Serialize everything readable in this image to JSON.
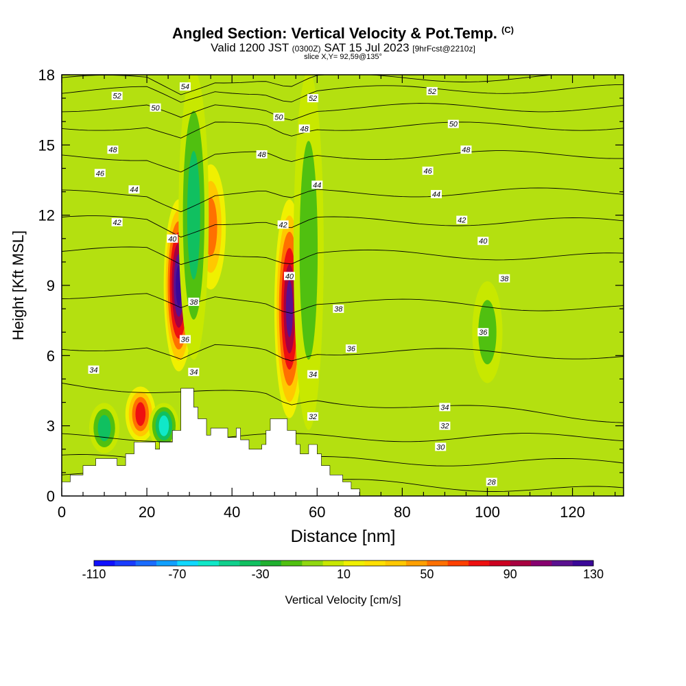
{
  "header": {
    "title": "Angled Section: Vertical Velocity & Pot.Temp.",
    "title_mark": "(C)",
    "valid_prefix": "Valid 1200 JST",
    "valid_utc": "(0300Z)",
    "valid_date": "SAT 15 Jul 2023",
    "forecast": "[9hrFcst@2210z]",
    "slice": "slice X,Y= 92,59@135°"
  },
  "colorbar": {
    "label": "Vertical Velocity [cm/s]",
    "tick_labels": [
      "-110",
      "-70",
      "-30",
      "10",
      "50",
      "90",
      "130"
    ],
    "colors": [
      "#1010ff",
      "#1a3cff",
      "#1a6cff",
      "#10a0ff",
      "#10d8ff",
      "#10e8c8",
      "#10d08c",
      "#10c060",
      "#20b030",
      "#50c010",
      "#90d810",
      "#c8e800",
      "#f0f000",
      "#ffe000",
      "#ffc800",
      "#ffa000",
      "#ff7000",
      "#ff4000",
      "#ee1010",
      "#cc0020",
      "#a80040",
      "#880070",
      "#5a1090",
      "#3a0898"
    ]
  },
  "chart_data": {
    "type": "heatmap",
    "title": "Angled Section: Vertical Velocity & Pot.Temp.",
    "xlabel": "Distance [nm]",
    "ylabel": "Height [Kft MSL]",
    "xlim": [
      0,
      132
    ],
    "ylim": [
      0,
      18
    ],
    "x_ticks": [
      0,
      20,
      40,
      60,
      80,
      100,
      120
    ],
    "y_ticks": [
      0,
      3,
      6,
      9,
      12,
      15,
      18
    ],
    "fill_variable": "Vertical Velocity [cm/s]",
    "fill_range": [
      -110,
      130
    ],
    "contour_variable": "Potential Temperature",
    "updrafts": [
      {
        "x": 27.5,
        "z_range": [
          5.5,
          12.5
        ],
        "max": 130
      },
      {
        "x": 53.5,
        "z_range": [
          3.5,
          12.5
        ],
        "max": 110
      },
      {
        "x": 35,
        "z_range": [
          9,
          14
        ],
        "max": 60
      },
      {
        "x": 18.5,
        "z_range": [
          2.5,
          4.5
        ],
        "max": 70
      }
    ],
    "downdrafts": [
      {
        "x": 24,
        "z_range": [
          2.2,
          3.8
        ],
        "min": -80
      },
      {
        "x": 10,
        "z_range": [
          2,
          3.8
        ],
        "min": -50
      },
      {
        "x": 31,
        "z_range": [
          6,
          18
        ],
        "min": -50
      },
      {
        "x": 58,
        "z_range": [
          3,
          18
        ],
        "min": -40
      },
      {
        "x": 100,
        "z_range": [
          5,
          9
        ],
        "min": -40
      }
    ],
    "terrain": [
      [
        0,
        0.6
      ],
      [
        2,
        0.6
      ],
      [
        2,
        0.9
      ],
      [
        5,
        0.9
      ],
      [
        5,
        1.3
      ],
      [
        8,
        1.3
      ],
      [
        8,
        1.6
      ],
      [
        13,
        1.6
      ],
      [
        13,
        1.3
      ],
      [
        15,
        1.3
      ],
      [
        15,
        1.8
      ],
      [
        17,
        1.8
      ],
      [
        17,
        2.3
      ],
      [
        22,
        2.3
      ],
      [
        22,
        2.0
      ],
      [
        23,
        2.0
      ],
      [
        23,
        2.3
      ],
      [
        26,
        2.3
      ],
      [
        26,
        2.8
      ],
      [
        28,
        2.8
      ],
      [
        28,
        4.6
      ],
      [
        31,
        4.6
      ],
      [
        31,
        3.8
      ],
      [
        32,
        3.8
      ],
      [
        32,
        3.3
      ],
      [
        34,
        3.3
      ],
      [
        34,
        2.6
      ],
      [
        35,
        2.6
      ],
      [
        35,
        2.9
      ],
      [
        39,
        2.9
      ],
      [
        39,
        2.5
      ],
      [
        41,
        2.5
      ],
      [
        41,
        2.9
      ],
      [
        42,
        2.9
      ],
      [
        42,
        2.4
      ],
      [
        44,
        2.4
      ],
      [
        44,
        2.0
      ],
      [
        47,
        2.0
      ],
      [
        47,
        2.2
      ],
      [
        48,
        2.2
      ],
      [
        48,
        2.8
      ],
      [
        49,
        2.8
      ],
      [
        49,
        3.3
      ],
      [
        53,
        3.3
      ],
      [
        53,
        2.8
      ],
      [
        55,
        2.8
      ],
      [
        55,
        2.2
      ],
      [
        56,
        2.2
      ],
      [
        56,
        1.8
      ],
      [
        58,
        1.8
      ],
      [
        58,
        2.2
      ],
      [
        60,
        2.2
      ],
      [
        60,
        1.8
      ],
      [
        61,
        1.8
      ],
      [
        61,
        1.3
      ],
      [
        63,
        1.3
      ],
      [
        63,
        0.9
      ],
      [
        66,
        0.9
      ],
      [
        66,
        0.6
      ],
      [
        68,
        0.6
      ],
      [
        68,
        0.3
      ],
      [
        70,
        0.3
      ],
      [
        70,
        0
      ],
      [
        132,
        0
      ]
    ],
    "contours": [
      {
        "label": "28",
        "y0": 0.9,
        "y1": 0.2
      },
      {
        "label": "30",
        "y0": 1.6,
        "y1": 1.4
      },
      {
        "label": "32",
        "y0": 2.5,
        "y1": 2.5
      },
      {
        "label": "34",
        "y0": 4.8,
        "y1": 3.3
      },
      {
        "label": "36",
        "y0": 6.4,
        "y1": 6.0
      },
      {
        "label": "38",
        "y0": 8.6,
        "y1": 8.0
      },
      {
        "label": "40",
        "y0": 10.5,
        "y1": 10.2
      },
      {
        "label": "42",
        "y0": 11.8,
        "y1": 11.7
      },
      {
        "label": "44",
        "y0": 12.9,
        "y1": 13.0
      },
      {
        "label": "46",
        "y0": 14.5,
        "y1": 14.6
      },
      {
        "label": "48",
        "y0": 15.8,
        "y1": 15.8
      },
      {
        "label": "50",
        "y0": 16.6,
        "y1": 16.6
      },
      {
        "label": "52",
        "y0": 17.3,
        "y1": 17.4
      },
      {
        "label": "54",
        "y0": 17.8,
        "y1": 17.9
      }
    ],
    "contour_labels": [
      {
        "text": "54",
        "x": 29,
        "y": 17.5
      },
      {
        "text": "52",
        "x": 13,
        "y": 17.1
      },
      {
        "text": "52",
        "x": 59,
        "y": 17.0
      },
      {
        "text": "52",
        "x": 87,
        "y": 17.3
      },
      {
        "text": "50",
        "x": 22,
        "y": 16.6
      },
      {
        "text": "50",
        "x": 51,
        "y": 16.2
      },
      {
        "text": "50",
        "x": 92,
        "y": 15.9
      },
      {
        "text": "48",
        "x": 57,
        "y": 15.7
      },
      {
        "text": "48",
        "x": 12,
        "y": 14.8
      },
      {
        "text": "48",
        "x": 47,
        "y": 14.6
      },
      {
        "text": "48",
        "x": 95,
        "y": 14.8
      },
      {
        "text": "46",
        "x": 9,
        "y": 13.8
      },
      {
        "text": "46",
        "x": 86,
        "y": 13.9
      },
      {
        "text": "44",
        "x": 17,
        "y": 13.1
      },
      {
        "text": "44",
        "x": 60,
        "y": 13.3
      },
      {
        "text": "44",
        "x": 88,
        "y": 12.9
      },
      {
        "text": "42",
        "x": 13,
        "y": 11.7
      },
      {
        "text": "42",
        "x": 52,
        "y": 11.6
      },
      {
        "text": "42",
        "x": 94,
        "y": 11.8
      },
      {
        "text": "40",
        "x": 26,
        "y": 11.0
      },
      {
        "text": "40",
        "x": 53.5,
        "y": 9.4
      },
      {
        "text": "40",
        "x": 99,
        "y": 10.9
      },
      {
        "text": "38",
        "x": 104,
        "y": 9.3
      },
      {
        "text": "38",
        "x": 31,
        "y": 8.3
      },
      {
        "text": "38",
        "x": 65,
        "y": 8.0
      },
      {
        "text": "36",
        "x": 29,
        "y": 6.7
      },
      {
        "text": "36",
        "x": 68,
        "y": 6.3
      },
      {
        "text": "36",
        "x": 99,
        "y": 7.0
      },
      {
        "text": "34",
        "x": 7.5,
        "y": 5.4
      },
      {
        "text": "34",
        "x": 31,
        "y": 5.3
      },
      {
        "text": "34",
        "x": 59,
        "y": 5.2
      },
      {
        "text": "34",
        "x": 90,
        "y": 3.8
      },
      {
        "text": "32",
        "x": 59,
        "y": 3.4
      },
      {
        "text": "32",
        "x": 90,
        "y": 3.0
      },
      {
        "text": "30",
        "x": 89,
        "y": 2.1
      },
      {
        "text": "28",
        "x": 101,
        "y": 0.6
      }
    ]
  }
}
